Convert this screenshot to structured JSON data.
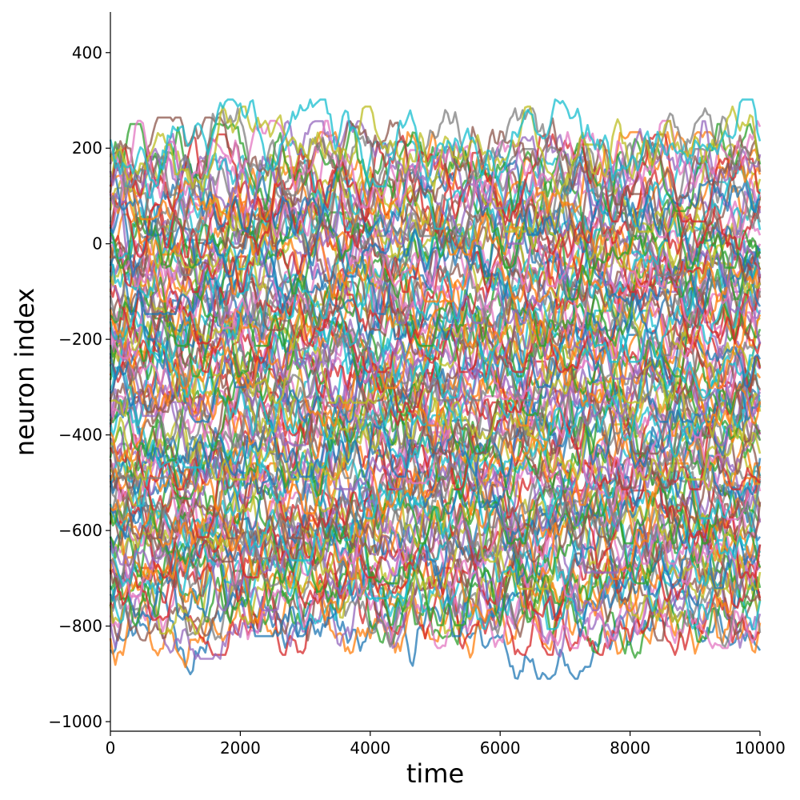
{
  "chart_data": {
    "type": "line",
    "title": "",
    "xlabel": "time",
    "ylabel": "neuron index",
    "xlim": [
      0,
      10000
    ],
    "ylim": [
      -1020,
      485
    ],
    "xticks": [
      0,
      2000,
      4000,
      6000,
      8000,
      10000
    ],
    "xtick_labels": [
      "0",
      "2000",
      "4000",
      "6000",
      "8000",
      "10000"
    ],
    "yticks": [
      -1000,
      -800,
      -600,
      -400,
      -200,
      0,
      200,
      400
    ],
    "ytick_labels": [
      "−1000",
      "−800",
      "−600",
      "−400",
      "−200",
      "0",
      "200",
      "400"
    ],
    "grid": false,
    "legend": "none",
    "spines": [
      "left",
      "bottom"
    ],
    "series_description": "many overlapping noisy traces, one per neuron, offset vertically by neuron index",
    "series_count_approx": 120,
    "series_offset_range": [
      -800,
      200
    ],
    "series_noise_amplitude": 70,
    "colors": [
      "#1f77b4",
      "#ff7f0e",
      "#2ca02c",
      "#d62728",
      "#9467bd",
      "#8c564b",
      "#e377c2",
      "#7f7f7f",
      "#bcbd22",
      "#17becf"
    ]
  }
}
